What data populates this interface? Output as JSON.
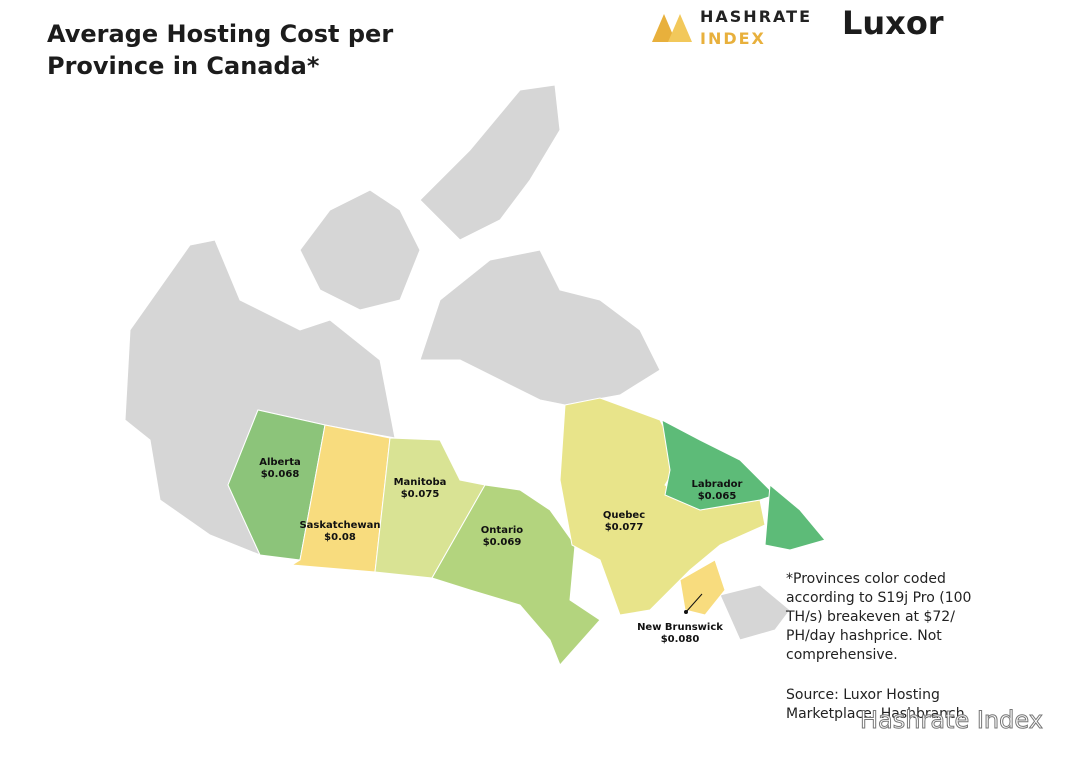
{
  "header": {
    "title": "Average Hosting Cost per Province in Canada*"
  },
  "logos": {
    "hashrate": [
      "HASHRATE",
      "INDEX"
    ],
    "luxor": "Luxor"
  },
  "provinces": [
    {
      "name": "Alberta",
      "cost": "$0.068",
      "color": "#8cc47a"
    },
    {
      "name": "Saskatchewan",
      "cost": "$0.08",
      "color": "#f8dc7e"
    },
    {
      "name": "Manitoba",
      "cost": "$0.075",
      "color": "#d9e394"
    },
    {
      "name": "Ontario",
      "cost": "$0.069",
      "color": "#b3d47e"
    },
    {
      "name": "Quebec",
      "cost": "$0.077",
      "color": "#e8e48a"
    },
    {
      "name": "Labrador",
      "cost": "$0.065",
      "color": "#5dbb78"
    },
    {
      "name": "New Brunswick",
      "cost": "$0.080",
      "color": "#f8dc7e"
    }
  ],
  "note": [
    "*Provinces color coded according to S19j Pro (100 TH/s) breakeven at $72/ PH/day hashprice. Not comprehensive.",
    "Source: Luxor Hosting Marketplace, Hashbranch"
  ],
  "watermark": "Hashrate Index"
}
